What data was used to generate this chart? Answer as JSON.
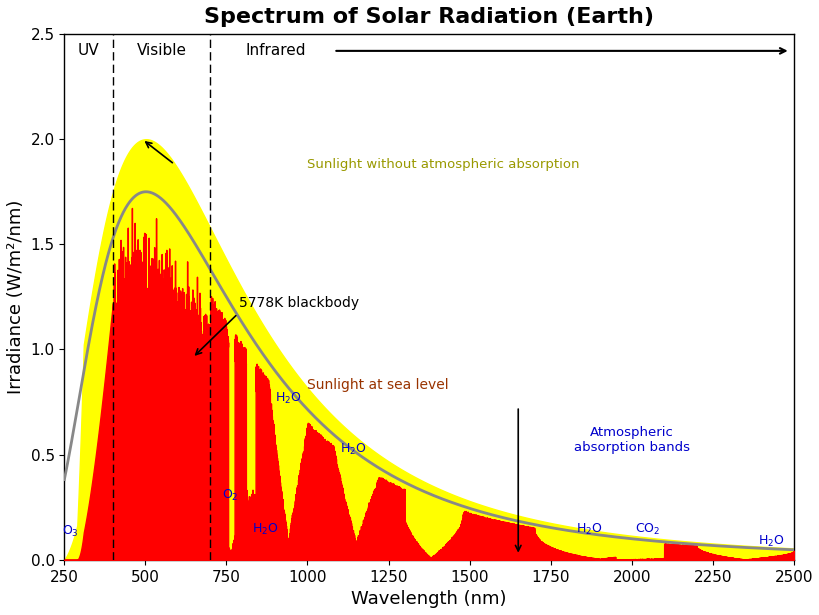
{
  "title": "Spectrum of Solar Radiation (Earth)",
  "xlabel": "Wavelength (nm)",
  "ylabel": "Irradiance (W/m²/nm)",
  "xlim": [
    250,
    2500
  ],
  "ylim": [
    0,
    2.5
  ],
  "xticks": [
    250,
    500,
    750,
    1000,
    1250,
    1500,
    1750,
    2000,
    2250,
    2500
  ],
  "yticks": [
    0,
    0.5,
    1.0,
    1.5,
    2.0,
    2.5
  ],
  "uv_line": 400,
  "visible_line": 700,
  "uv_label": "UV",
  "visible_label": "Visible",
  "infrared_label": "Infrared",
  "yellow_color": "#FFFF00",
  "red_color": "#FF0000",
  "blackbody_color": "#888888",
  "title_fontsize": 16,
  "label_fontsize": 13,
  "tick_fontsize": 11,
  "annotation_color_yellow": "#999900",
  "annotation_color_red": "#993300",
  "annotation_color_blue": "#0000CC",
  "annotation_color_black": "#000000",
  "background_color": "#ffffff"
}
